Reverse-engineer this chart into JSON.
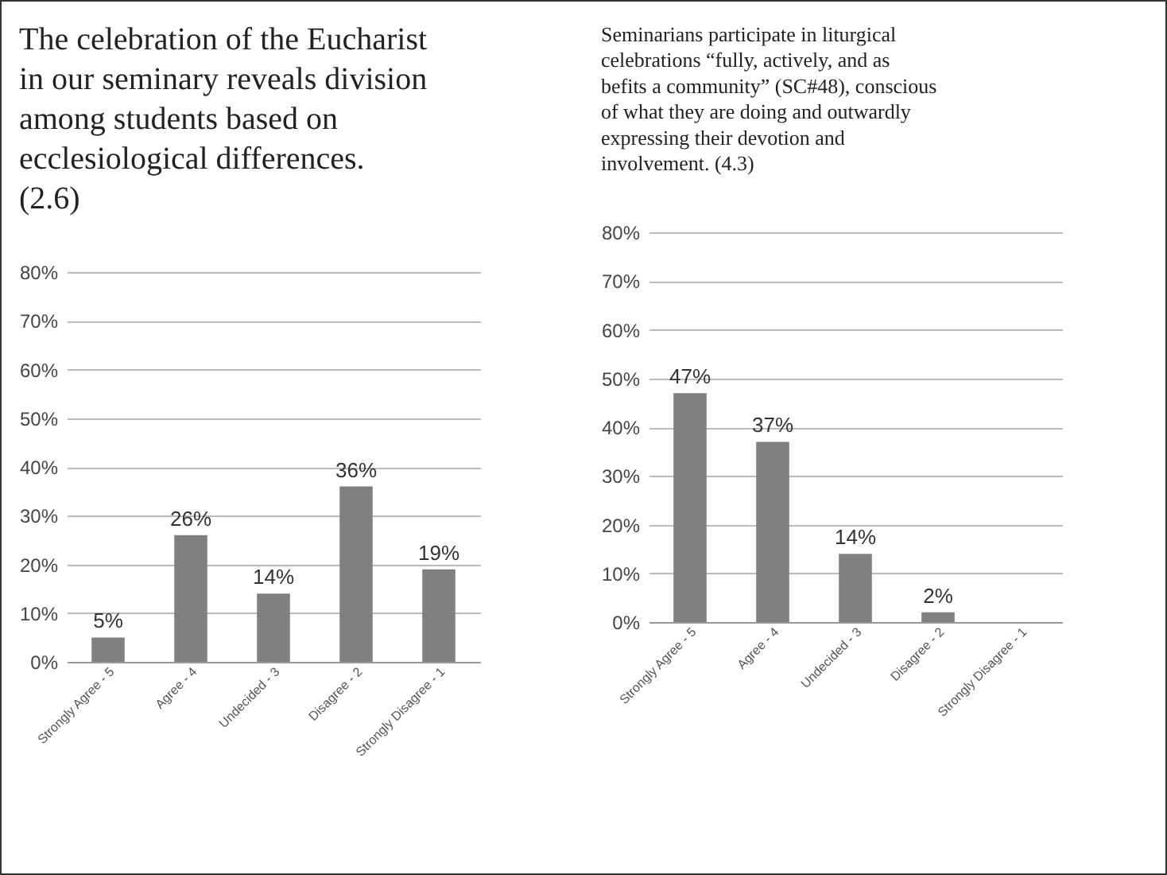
{
  "chart_data": [
    {
      "type": "bar",
      "title": "The celebration of the Eucharist in our seminary reveals division among students based on ecclesiological differences.  (2.6)",
      "categories": [
        "Strongly Agree - 5",
        "Agree - 4",
        "Undecided - 3",
        "Disagree - 2",
        "Strongly Disagree - 1"
      ],
      "values": [
        5,
        26,
        14,
        36,
        19
      ],
      "value_labels": [
        "5%",
        "26%",
        "14%",
        "36%",
        "19%"
      ],
      "color": "#808080",
      "ylim": [
        0,
        80
      ],
      "yticks": [
        {
          "value": 0,
          "label": "0%"
        },
        {
          "value": 10,
          "label": "10%"
        },
        {
          "value": 20,
          "label": "20%"
        },
        {
          "value": 30,
          "label": "30%"
        },
        {
          "value": 40,
          "label": "40%"
        },
        {
          "value": 50,
          "label": "50%"
        },
        {
          "value": 60,
          "label": "60%"
        },
        {
          "value": 70,
          "label": "70%"
        },
        {
          "value": 80,
          "label": "80%"
        }
      ],
      "grid": "y"
    },
    {
      "type": "bar",
      "title": "Seminarians participate in liturgical celebrations “fully, actively, and as befits a community” (SC#48), conscious of what they are doing and outwardly expressing their devotion and involvement.  (4.3)",
      "categories": [
        "Strongly Agree - 5",
        "Agree - 4",
        "Undecided - 3",
        "Disagree - 2",
        "Strongly Disagree - 1"
      ],
      "values": [
        47,
        37,
        14,
        2,
        0
      ],
      "value_labels": [
        "47%",
        "37%",
        "14%",
        "2%",
        null
      ],
      "color": "#808080",
      "ylim": [
        0,
        80
      ],
      "yticks": [
        {
          "value": 0,
          "label": "0%"
        },
        {
          "value": 10,
          "label": "10%"
        },
        {
          "value": 20,
          "label": "20%"
        },
        {
          "value": 30,
          "label": "30%"
        },
        {
          "value": 40,
          "label": "40%"
        },
        {
          "value": 50,
          "label": "50%"
        },
        {
          "value": 60,
          "label": "60%"
        },
        {
          "value": 70,
          "label": "70%"
        },
        {
          "value": 80,
          "label": "80%"
        }
      ],
      "grid": "y"
    }
  ]
}
